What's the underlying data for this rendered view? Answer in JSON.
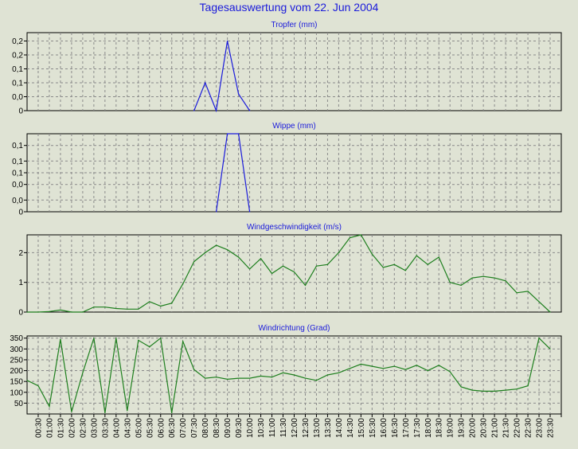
{
  "page": {
    "title": "Tagesauswertung vom 22. Jun 2004"
  },
  "colors": {
    "background": "#dfe3d4",
    "title_text": "#1a1adb",
    "rain_series": "#1a1adb",
    "wind_series": "#1e7f1e",
    "grid": "#8a8a8a"
  },
  "x_tick_labels": [
    "00:30",
    "01:00",
    "01:30",
    "02:00",
    "02:30",
    "03:00",
    "03:30",
    "04:00",
    "04:30",
    "05:00",
    "05:30",
    "06:00",
    "06:30",
    "07:00",
    "07:30",
    "08:00",
    "08:30",
    "09:00",
    "09:30",
    "10:00",
    "10:30",
    "11:00",
    "11:30",
    "12:00",
    "12:30",
    "13:00",
    "13:30",
    "14:00",
    "14:30",
    "15:00",
    "15:30",
    "16:00",
    "16:30",
    "17:00",
    "17:30",
    "18:00",
    "18:30",
    "19:00",
    "19:30",
    "20:00",
    "20:30",
    "21:00",
    "21:30",
    "22:00",
    "22:30",
    "23:00",
    "23:30"
  ],
  "chart_data": [
    {
      "type": "line",
      "title": "Tropfer (mm)",
      "ylim": [
        0,
        0.28
      ],
      "y_tick_labels": [
        "0",
        "0,0",
        "0,1",
        "0,1",
        "0,2",
        "0,2"
      ],
      "y_tick_values": [
        0,
        0.05,
        0.1,
        0.15,
        0.2,
        0.25
      ],
      "grid": true,
      "series": [
        {
          "color": "#1a1adb",
          "x": [
            "00:00",
            "00:30",
            "01:00",
            "01:30",
            "02:00",
            "02:30",
            "03:00",
            "03:30",
            "04:00",
            "04:30",
            "05:00",
            "05:30",
            "06:00",
            "06:30",
            "07:00",
            "07:30",
            "08:00",
            "08:30",
            "09:00",
            "09:30",
            "10:00",
            "10:30",
            "11:00",
            "11:30",
            "12:00",
            "12:30",
            "13:00",
            "13:30",
            "14:00",
            "14:30",
            "15:00",
            "15:30",
            "16:00",
            "16:30",
            "17:00",
            "17:30",
            "18:00",
            "18:30",
            "19:00",
            "19:30",
            "20:00",
            "20:30",
            "21:00",
            "21:30",
            "22:00",
            "22:30",
            "23:00",
            "23:30"
          ],
          "values": [
            null,
            null,
            null,
            null,
            null,
            null,
            null,
            null,
            null,
            null,
            null,
            null,
            null,
            null,
            null,
            0,
            0.1,
            0,
            0.25,
            0.06,
            0,
            null,
            null,
            null,
            null,
            null,
            null,
            null,
            null,
            null,
            null,
            null,
            null,
            null,
            null,
            null,
            null,
            null,
            null,
            null,
            null,
            null,
            null,
            null,
            null,
            null,
            null,
            null
          ]
        }
      ]
    },
    {
      "type": "line",
      "title": "Wippe (mm)",
      "ylim": [
        0,
        0.2
      ],
      "y_tick_labels": [
        "0",
        "0,0",
        "0,0",
        "0,1",
        "0,1",
        "0,1"
      ],
      "y_tick_values": [
        0,
        0.03,
        0.07,
        0.1,
        0.13,
        0.17
      ],
      "grid": true,
      "series": [
        {
          "color": "#1a1adb",
          "x": [
            "00:00",
            "00:30",
            "01:00",
            "01:30",
            "02:00",
            "02:30",
            "03:00",
            "03:30",
            "04:00",
            "04:30",
            "05:00",
            "05:30",
            "06:00",
            "06:30",
            "07:00",
            "07:30",
            "08:00",
            "08:30",
            "09:00",
            "09:30",
            "10:00",
            "10:30",
            "11:00",
            "11:30",
            "12:00",
            "12:30",
            "13:00",
            "13:30",
            "14:00",
            "14:30",
            "15:00",
            "15:30",
            "16:00",
            "16:30",
            "17:00",
            "17:30",
            "18:00",
            "18:30",
            "19:00",
            "19:30",
            "20:00",
            "20:30",
            "21:00",
            "21:30",
            "22:00",
            "22:30",
            "23:00",
            "23:30"
          ],
          "values": [
            null,
            null,
            null,
            null,
            null,
            null,
            null,
            null,
            null,
            null,
            null,
            null,
            null,
            null,
            null,
            null,
            null,
            0,
            0.2,
            0.2,
            0,
            null,
            null,
            null,
            null,
            null,
            null,
            null,
            null,
            null,
            null,
            null,
            null,
            null,
            null,
            null,
            null,
            null,
            null,
            null,
            null,
            null,
            null,
            null,
            null,
            null,
            null,
            null
          ]
        }
      ]
    },
    {
      "type": "line",
      "title": "Windgeschwindigkeit (m/s)",
      "ylim": [
        0,
        2.6
      ],
      "y_tick_labels": [
        "0",
        "1",
        "2"
      ],
      "y_tick_values": [
        0,
        1,
        2
      ],
      "grid": true,
      "series": [
        {
          "color": "#1e7f1e",
          "x": [
            "00:00",
            "00:30",
            "01:00",
            "01:30",
            "02:00",
            "02:30",
            "03:00",
            "03:30",
            "04:00",
            "04:30",
            "05:00",
            "05:30",
            "06:00",
            "06:30",
            "07:00",
            "07:30",
            "08:00",
            "08:30",
            "09:00",
            "09:30",
            "10:00",
            "10:30",
            "11:00",
            "11:30",
            "12:00",
            "12:30",
            "13:00",
            "13:30",
            "14:00",
            "14:30",
            "15:00",
            "15:30",
            "16:00",
            "16:30",
            "17:00",
            "17:30",
            "18:00",
            "18:30",
            "19:00",
            "19:30",
            "20:00",
            "20:30",
            "21:00",
            "21:30",
            "22:00",
            "22:30",
            "23:00",
            "23:30"
          ],
          "values": [
            0,
            0,
            0.02,
            0.07,
            0,
            0,
            0.17,
            0.17,
            0.12,
            0.1,
            0.1,
            0.35,
            0.2,
            0.3,
            0.95,
            1.7,
            2.0,
            2.25,
            2.1,
            1.85,
            1.45,
            1.8,
            1.3,
            1.55,
            1.35,
            0.9,
            1.55,
            1.6,
            2.0,
            2.5,
            2.6,
            1.95,
            1.5,
            1.6,
            1.4,
            1.9,
            1.6,
            1.85,
            1.0,
            0.9,
            1.15,
            1.2,
            1.15,
            1.05,
            0.65,
            0.7,
            0.35,
            0
          ]
        }
      ]
    },
    {
      "type": "line",
      "title": "Windrichtung (Grad)",
      "ylim": [
        0,
        360
      ],
      "y_tick_labels": [
        "50",
        "100",
        "150",
        "200",
        "250",
        "300",
        "350"
      ],
      "y_tick_values": [
        50,
        100,
        150,
        200,
        250,
        300,
        350
      ],
      "grid": true,
      "series": [
        {
          "color": "#1e7f1e",
          "x": [
            "00:00",
            "00:30",
            "01:00",
            "01:30",
            "02:00",
            "02:30",
            "03:00",
            "03:30",
            "04:00",
            "04:30",
            "05:00",
            "05:30",
            "06:00",
            "06:30",
            "07:00",
            "07:30",
            "08:00",
            "08:30",
            "09:00",
            "09:30",
            "10:00",
            "10:30",
            "11:00",
            "11:30",
            "12:00",
            "12:30",
            "13:00",
            "13:30",
            "14:00",
            "14:30",
            "15:00",
            "15:30",
            "16:00",
            "16:30",
            "17:00",
            "17:30",
            "18:00",
            "18:30",
            "19:00",
            "19:30",
            "20:00",
            "20:30",
            "21:00",
            "21:30",
            "22:00",
            "22:30",
            "23:00",
            "23:30"
          ],
          "values": [
            155,
            130,
            35,
            345,
            10,
            190,
            350,
            5,
            350,
            15,
            340,
            310,
            350,
            5,
            335,
            205,
            165,
            170,
            160,
            165,
            165,
            175,
            170,
            190,
            180,
            165,
            155,
            180,
            190,
            210,
            230,
            220,
            210,
            220,
            205,
            225,
            200,
            225,
            195,
            125,
            110,
            105,
            105,
            110,
            115,
            130,
            350,
            300
          ]
        }
      ]
    }
  ]
}
